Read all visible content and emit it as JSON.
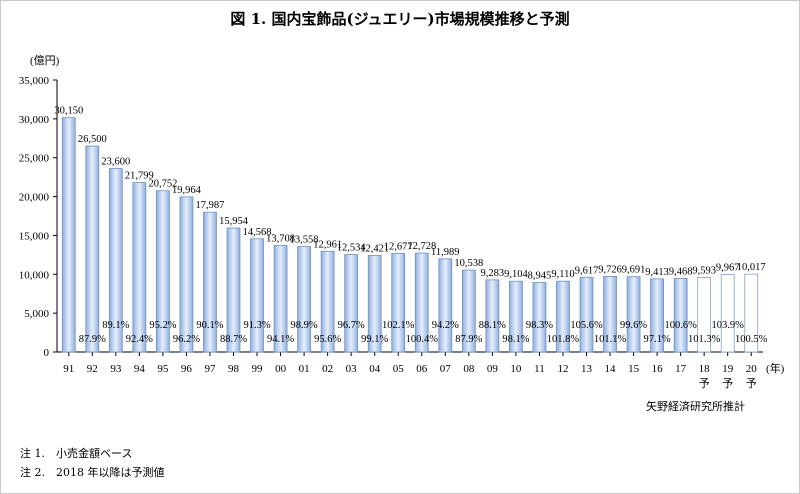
{
  "chart_data": {
    "type": "bar",
    "title": "図 1. 国内宝飾品(ジュエリー)市場規模推移と予測",
    "y_unit": "(億円)",
    "x_unit": "(年)",
    "ylim": [
      0,
      35000
    ],
    "yticks": [
      "0",
      "5,000",
      "10,000",
      "15,000",
      "20,000",
      "25,000",
      "30,000",
      "35,000"
    ],
    "grid": false,
    "categories": [
      "91",
      "92",
      "93",
      "94",
      "95",
      "96",
      "97",
      "98",
      "99",
      "00",
      "01",
      "02",
      "03",
      "04",
      "05",
      "06",
      "07",
      "08",
      "09",
      "10",
      "11",
      "12",
      "13",
      "14",
      "15",
      "16",
      "17",
      "18",
      "19",
      "20"
    ],
    "forecast_marks": [
      "予",
      "予",
      "予"
    ],
    "values": [
      30150,
      26500,
      23600,
      21799,
      20752,
      19964,
      17987,
      15954,
      14568,
      13708,
      13558,
      12961,
      12534,
      12421,
      12677,
      12728,
      11989,
      10538,
      9283,
      9104,
      8945,
      9110,
      9617,
      9726,
      9691,
      9413,
      9468,
      9593,
      9967,
      10017
    ],
    "value_labels": [
      "30,150",
      "26,500",
      "23,600",
      "21,799",
      "20,752",
      "19,964",
      "17,987",
      "15,954",
      "14,568",
      "13,708",
      "13,558",
      "12,961",
      "12,534",
      "12,421",
      "12,677",
      "12,728",
      "11,989",
      "10,538",
      "9,283",
      "9,104",
      "8,945",
      "9,110",
      "9,617",
      "9,726",
      "9,691",
      "9,413",
      "9,468",
      "9,593",
      "9,967",
      "10,017"
    ],
    "yoy_labels": [
      "",
      "87.9%",
      "89.1%",
      "92.4%",
      "95.2%",
      "96.2%",
      "90.1%",
      "88.7%",
      "91.3%",
      "94.1%",
      "98.9%",
      "95.6%",
      "96.7%",
      "99.1%",
      "102.1%",
      "100.4%",
      "94.2%",
      "87.9%",
      "88.1%",
      "98.1%",
      "98.3%",
      "101.8%",
      "105.6%",
      "101.1%",
      "99.6%",
      "97.1%",
      "100.6%",
      "101.3%",
      "103.9%",
      "100.5%"
    ],
    "bar_color": "#a9c3ea",
    "forecast_bar_color": "#ffffff"
  },
  "source": "矢野経済研究所推計",
  "notes": [
    "注 1.　小売金額ベース",
    "注 2.　2018 年以降は予測値"
  ]
}
